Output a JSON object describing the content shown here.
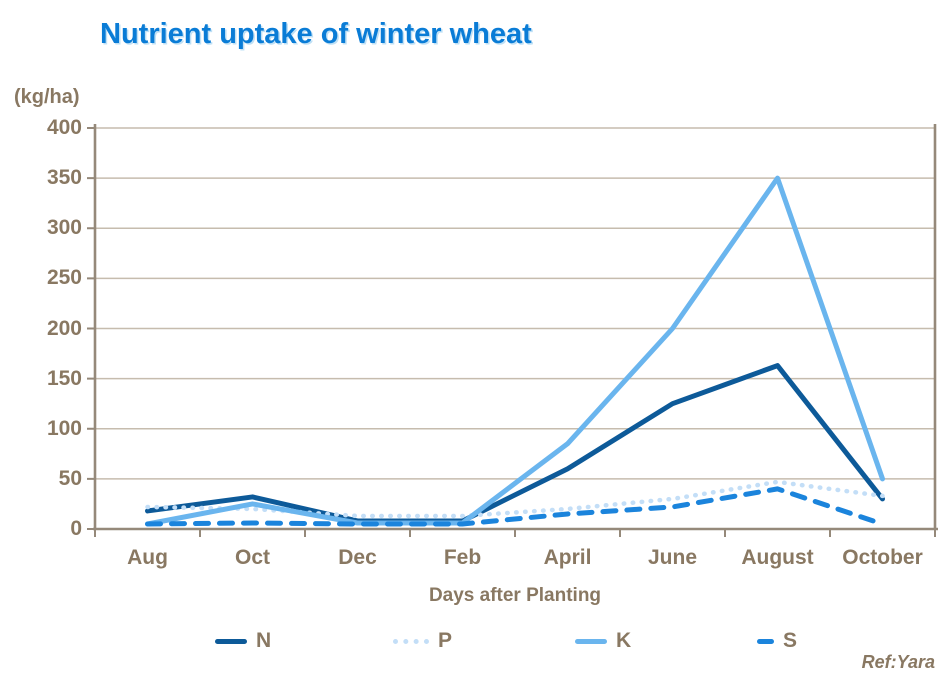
{
  "title": "Nutrient uptake of winter wheat",
  "y_axis_unit": "(kg/ha)",
  "x_axis_title": "Days after Planting",
  "ref_text": "Ref:Yara",
  "colors": {
    "title_blue": "#0a7cd6",
    "label_brown": "#897862",
    "grid": "#c6bcae",
    "axis": "#95897a",
    "series_n": "#0d5a99",
    "series_p": "#c3def7",
    "series_k": "#6ab5ee",
    "series_s": "#1b84dc"
  },
  "chart_data": {
    "type": "line",
    "title": "Nutrient uptake of winter wheat",
    "xlabel": "Days after Planting",
    "ylabel": "(kg/ha)",
    "categories": [
      "Aug",
      "Oct",
      "Dec",
      "Feb",
      "April",
      "June",
      "August",
      "October"
    ],
    "series": [
      {
        "name": "N",
        "style": "solid",
        "color": "#0d5a99",
        "width": 5,
        "values": [
          18,
          32,
          8,
          8,
          60,
          125,
          163,
          30
        ]
      },
      {
        "name": "P",
        "style": "dotted",
        "color": "#c3def7",
        "width": 4.5,
        "values": [
          22,
          20,
          13,
          13,
          20,
          30,
          47,
          33
        ]
      },
      {
        "name": "K",
        "style": "solid",
        "color": "#6ab5ee",
        "width": 5,
        "values": [
          5,
          25,
          6,
          6,
          85,
          200,
          350,
          50
        ]
      },
      {
        "name": "S",
        "style": "dashed",
        "color": "#1b84dc",
        "width": 5,
        "values": [
          5,
          6,
          5,
          5,
          15,
          22,
          40,
          5
        ]
      }
    ],
    "ylim": [
      0,
      400
    ],
    "yticks": [
      400,
      350,
      300,
      250,
      200,
      150,
      100,
      50,
      0
    ],
    "grid": true,
    "legend_position": "bottom"
  }
}
